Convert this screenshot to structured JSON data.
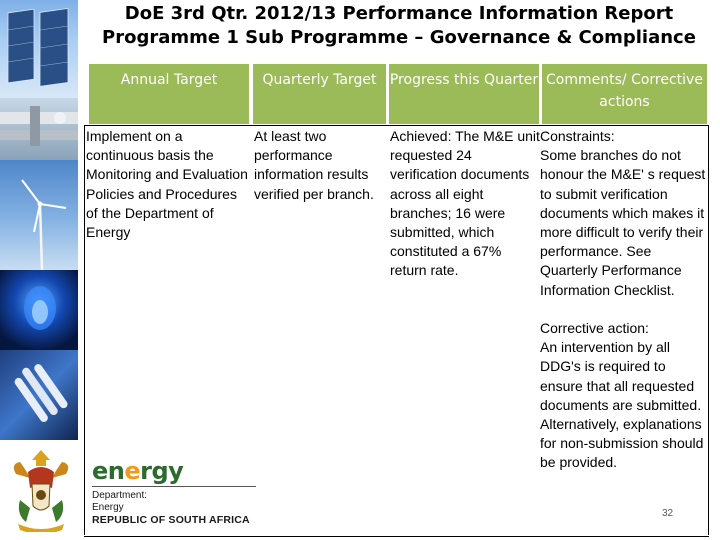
{
  "slide": {
    "title_line1": "DoE 3rd Qtr. 2012/13 Performance Information Report",
    "title_line2": "Programme 1 Sub Programme – Governance & Compliance",
    "page_number": "32"
  },
  "table": {
    "headers": [
      "Annual Target",
      "Quarterly Target",
      "Progress this Quarter",
      "Comments/ Corrective actions"
    ],
    "row": {
      "annual_target": "Implement on a continuous basis the Monitoring and Evaluation Policies and Procedures of the Department of Energy",
      "quarterly_target": "At least two performance information results verified per branch.",
      "progress": "Achieved: The M&E unit requested 24 verification documents across all eight branches; 16 were submitted, which constituted a 67% return rate.",
      "constraints_label": "Constraints:",
      "constraints": "Some branches do not honour the M&E' s request to submit verification documents which makes it more difficult to verify their performance. See Quarterly Performance Information Checklist.",
      "corrective_label": "Corrective action:",
      "corrective": "An intervention by all DDG's is required to ensure that all requested documents are submitted. Alternatively, explanations for non-submission should be provided."
    }
  },
  "logo": {
    "energy_word_prefix": "en",
    "energy_word_e": "e",
    "energy_word_suffix": "rgy",
    "department": "Department:",
    "dept_name": "Energy",
    "country": "REPUBLIC OF SOUTH AFRICA"
  },
  "colors": {
    "header_bg": "#9bbb59",
    "header_text": "#ffffff",
    "logo_green": "#2d6a2d",
    "logo_orange": "#f29a1a"
  }
}
